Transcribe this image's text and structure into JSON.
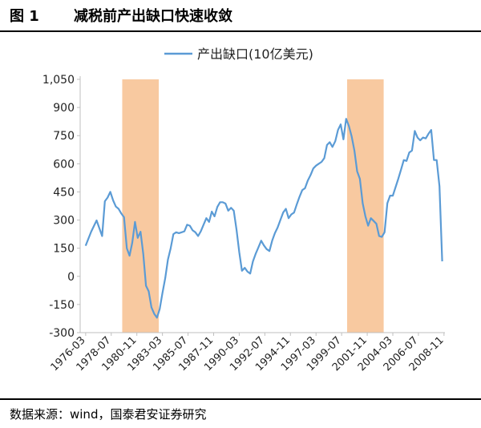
{
  "figure": {
    "label": "图 1",
    "title": "减税前产出缺口快速收敛",
    "source": "数据来源：wind，国泰君安证券研究"
  },
  "colors": {
    "line": "#5b9bd5",
    "shade": "#f8c9a0",
    "axis": "#bfbfbf",
    "text": "#222222"
  },
  "chart_data": {
    "type": "line",
    "legend": {
      "position": "top",
      "entries": [
        "产出缺口(10亿美元)"
      ]
    },
    "series": [
      {
        "name": "产出缺口(10亿美元)",
        "points": [
          [
            "1976-03",
            163
          ],
          [
            "1976-09",
            238
          ],
          [
            "1977-03",
            298
          ],
          [
            "1977-09",
            215
          ],
          [
            "1977-12",
            400
          ],
          [
            "1978-03",
            420
          ],
          [
            "1978-06",
            450
          ],
          [
            "1978-09",
            405
          ],
          [
            "1978-12",
            372
          ],
          [
            "1979-03",
            360
          ],
          [
            "1979-06",
            335
          ],
          [
            "1979-09",
            315
          ],
          [
            "1979-12",
            150
          ],
          [
            "1980-03",
            110
          ],
          [
            "1980-06",
            180
          ],
          [
            "1980-09",
            290
          ],
          [
            "1980-12",
            205
          ],
          [
            "1981-03",
            238
          ],
          [
            "1981-06",
            120
          ],
          [
            "1981-09",
            -50
          ],
          [
            "1981-12",
            -80
          ],
          [
            "1982-03",
            -165
          ],
          [
            "1982-06",
            -200
          ],
          [
            "1982-09",
            -220
          ],
          [
            "1982-12",
            -175
          ],
          [
            "1983-03",
            -90
          ],
          [
            "1983-06",
            -10
          ],
          [
            "1983-09",
            90
          ],
          [
            "1983-12",
            150
          ],
          [
            "1984-03",
            225
          ],
          [
            "1984-06",
            235
          ],
          [
            "1984-09",
            230
          ],
          [
            "1984-12",
            235
          ],
          [
            "1985-03",
            240
          ],
          [
            "1985-06",
            275
          ],
          [
            "1985-09",
            270
          ],
          [
            "1985-12",
            245
          ],
          [
            "1986-03",
            235
          ],
          [
            "1986-06",
            215
          ],
          [
            "1986-09",
            240
          ],
          [
            "1986-12",
            275
          ],
          [
            "1987-03",
            310
          ],
          [
            "1987-06",
            290
          ],
          [
            "1987-09",
            345
          ],
          [
            "1987-12",
            320
          ],
          [
            "1988-03",
            370
          ],
          [
            "1988-06",
            395
          ],
          [
            "1988-09",
            395
          ],
          [
            "1988-12",
            388
          ],
          [
            "1989-03",
            350
          ],
          [
            "1989-06",
            365
          ],
          [
            "1989-09",
            350
          ],
          [
            "1989-12",
            250
          ],
          [
            "1990-03",
            130
          ],
          [
            "1990-06",
            30
          ],
          [
            "1990-09",
            45
          ],
          [
            "1990-12",
            25
          ],
          [
            "1991-03",
            15
          ],
          [
            "1991-06",
            80
          ],
          [
            "1991-09",
            120
          ],
          [
            "1991-12",
            155
          ],
          [
            "1992-03",
            190
          ],
          [
            "1992-06",
            165
          ],
          [
            "1992-09",
            145
          ],
          [
            "1992-12",
            135
          ],
          [
            "1993-03",
            190
          ],
          [
            "1993-06",
            230
          ],
          [
            "1993-09",
            260
          ],
          [
            "1993-12",
            300
          ],
          [
            "1994-03",
            340
          ],
          [
            "1994-06",
            360
          ],
          [
            "1994-09",
            310
          ],
          [
            "1994-12",
            330
          ],
          [
            "1995-03",
            340
          ],
          [
            "1995-06",
            385
          ],
          [
            "1995-09",
            425
          ],
          [
            "1995-12",
            460
          ],
          [
            "1996-03",
            470
          ],
          [
            "1996-06",
            510
          ],
          [
            "1996-09",
            540
          ],
          [
            "1996-12",
            575
          ],
          [
            "1997-03",
            590
          ],
          [
            "1997-06",
            600
          ],
          [
            "1997-09",
            610
          ],
          [
            "1997-12",
            630
          ],
          [
            "1998-03",
            700
          ],
          [
            "1998-06",
            715
          ],
          [
            "1998-09",
            690
          ],
          [
            "1998-12",
            720
          ],
          [
            "1999-03",
            780
          ],
          [
            "1999-06",
            810
          ],
          [
            "1999-09",
            730
          ],
          [
            "1999-12",
            840
          ],
          [
            "2000-03",
            800
          ],
          [
            "2000-06",
            745
          ],
          [
            "2000-09",
            670
          ],
          [
            "2000-12",
            560
          ],
          [
            "2001-03",
            520
          ],
          [
            "2001-06",
            390
          ],
          [
            "2001-09",
            320
          ],
          [
            "2001-12",
            270
          ],
          [
            "2002-03",
            310
          ],
          [
            "2002-06",
            295
          ],
          [
            "2002-09",
            280
          ],
          [
            "2002-12",
            215
          ],
          [
            "2003-03",
            210
          ],
          [
            "2003-06",
            235
          ],
          [
            "2003-09",
            390
          ],
          [
            "2003-12",
            430
          ],
          [
            "2004-03",
            430
          ],
          [
            "2004-06",
            475
          ],
          [
            "2004-09",
            520
          ],
          [
            "2004-12",
            570
          ],
          [
            "2005-03",
            620
          ],
          [
            "2005-06",
            615
          ],
          [
            "2005-09",
            660
          ],
          [
            "2005-12",
            670
          ],
          [
            "2006-03",
            775
          ],
          [
            "2006-06",
            740
          ],
          [
            "2006-09",
            725
          ],
          [
            "2006-12",
            740
          ],
          [
            "2007-03",
            735
          ],
          [
            "2007-06",
            760
          ],
          [
            "2007-09",
            780
          ],
          [
            "2007-12",
            620
          ],
          [
            "2008-03",
            620
          ],
          [
            "2008-06",
            480
          ],
          [
            "2008-09",
            80
          ]
        ]
      }
    ],
    "shaded_periods": [
      [
        "1979-07",
        "1982-11"
      ],
      [
        "2000-01",
        "2003-05"
      ]
    ],
    "ylim": [
      -300,
      1050
    ],
    "yticks": [
      -300,
      -150,
      0,
      150,
      300,
      450,
      600,
      750,
      900,
      1050
    ],
    "ytick_labels": [
      "-300",
      "-150",
      "0",
      "150",
      "300",
      "450",
      "600",
      "750",
      "900",
      "1,050"
    ],
    "xlim": [
      "1975-09",
      "2008-12"
    ],
    "xticks": [
      "1976-03",
      "1978-07",
      "1980-11",
      "1983-03",
      "1985-07",
      "1987-11",
      "1990-03",
      "1992-07",
      "1994-11",
      "1997-03",
      "1999-07",
      "2001-11",
      "2004-03",
      "2006-07",
      "2008-11"
    ],
    "grid": false
  }
}
